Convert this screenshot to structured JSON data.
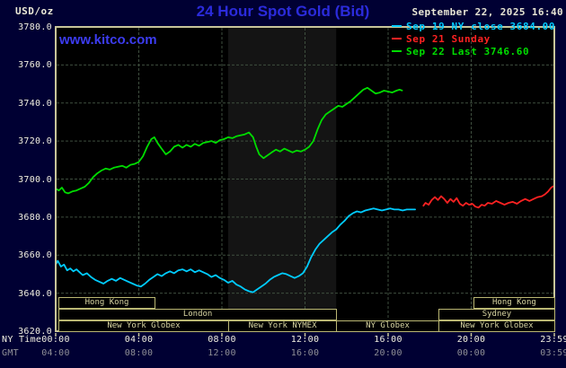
{
  "header": {
    "units_label": "USD/oz",
    "title": "24 Hour Spot Gold (Bid)",
    "datetime": "September 22, 2025 16:40",
    "watermark": "www.kitco.com"
  },
  "axes": {
    "ny_label": "NY Time",
    "gmt_label": "GMT"
  },
  "sessions": {
    "rows": [
      [
        {
          "label": "Hong Kong",
          "h1": 0.13,
          "h2": 4.76
        },
        {
          "label": "Hong Kong",
          "h1": 20.1,
          "h2": 24
        }
      ],
      [
        {
          "label": "London",
          "h1": 0.13,
          "h2": 13.5
        },
        {
          "label": "Sydney",
          "h1": 18.42,
          "h2": 24
        }
      ],
      [
        {
          "label": "New York Globex",
          "h1": 0.13,
          "h2": 8.3
        },
        {
          "label": "New York NYMEX",
          "h1": 8.3,
          "h2": 13.5
        },
        {
          "label": "NY Globex",
          "h1": 13.5,
          "h2": 18.42
        },
        {
          "label": "New York Globex",
          "h1": 18.42,
          "h2": 24
        }
      ]
    ]
  },
  "chart_data": {
    "type": "line",
    "title": "24 Hour Spot Gold (Bid)",
    "xlabel": "NY Time",
    "ylabel": "USD/oz",
    "ylim": [
      3620,
      3780
    ],
    "y_tick_step": 20,
    "y_tick_labels": [
      "3780.0",
      "3760.0",
      "3740.0",
      "3720.0",
      "3700.0",
      "3680.0",
      "3660.0",
      "3640.0",
      "3620.0"
    ],
    "xlim_hours": [
      0,
      24
    ],
    "x_tick_hours": [
      0,
      4,
      8,
      12,
      16,
      20,
      24
    ],
    "x_tick_labels_ny": [
      "00:00",
      "04:00",
      "08:00",
      "12:00",
      "16:00",
      "20:00",
      "23:59"
    ],
    "x_tick_labels_gmt": [
      "04:00",
      "08:00",
      "12:00",
      "16:00",
      "20:00",
      "00:00",
      "03:59"
    ],
    "grid": true,
    "legend_position": "top-right",
    "nymex_band_hours": [
      8.3,
      13.5
    ],
    "series": [
      {
        "name": "sep19-ny-close",
        "legend_label": "Sep 19 NY close 3684.00",
        "color": "#00ccff",
        "close": 3684.0,
        "points": [
          [
            0.0,
            3655
          ],
          [
            0.1,
            3657
          ],
          [
            0.25,
            3654
          ],
          [
            0.4,
            3655
          ],
          [
            0.55,
            3652
          ],
          [
            0.7,
            3653
          ],
          [
            0.85,
            3651.5
          ],
          [
            1.0,
            3652.5
          ],
          [
            1.15,
            3651
          ],
          [
            1.3,
            3649.5
          ],
          [
            1.5,
            3650.5
          ],
          [
            1.7,
            3648.5
          ],
          [
            1.9,
            3647
          ],
          [
            2.1,
            3646
          ],
          [
            2.3,
            3645
          ],
          [
            2.5,
            3646.5
          ],
          [
            2.7,
            3647.5
          ],
          [
            2.9,
            3646.5
          ],
          [
            3.1,
            3648
          ],
          [
            3.3,
            3647
          ],
          [
            3.5,
            3646
          ],
          [
            3.7,
            3645
          ],
          [
            3.9,
            3644
          ],
          [
            4.1,
            3643.5
          ],
          [
            4.3,
            3645
          ],
          [
            4.5,
            3647
          ],
          [
            4.7,
            3648.5
          ],
          [
            4.9,
            3650
          ],
          [
            5.1,
            3649
          ],
          [
            5.3,
            3650.5
          ],
          [
            5.5,
            3651.5
          ],
          [
            5.7,
            3650.5
          ],
          [
            5.9,
            3652
          ],
          [
            6.1,
            3652.5
          ],
          [
            6.3,
            3651.5
          ],
          [
            6.5,
            3652.5
          ],
          [
            6.7,
            3651
          ],
          [
            6.9,
            3652
          ],
          [
            7.1,
            3651
          ],
          [
            7.3,
            3650
          ],
          [
            7.5,
            3648.5
          ],
          [
            7.7,
            3649.5
          ],
          [
            7.9,
            3648
          ],
          [
            8.1,
            3647
          ],
          [
            8.3,
            3645.5
          ],
          [
            8.5,
            3646.5
          ],
          [
            8.7,
            3644.5
          ],
          [
            8.9,
            3643.5
          ],
          [
            9.1,
            3642
          ],
          [
            9.3,
            3641
          ],
          [
            9.5,
            3640.5
          ],
          [
            9.7,
            3642
          ],
          [
            9.9,
            3643.5
          ],
          [
            10.1,
            3645
          ],
          [
            10.3,
            3647
          ],
          [
            10.5,
            3648.5
          ],
          [
            10.7,
            3649.5
          ],
          [
            10.9,
            3650.5
          ],
          [
            11.1,
            3650
          ],
          [
            11.3,
            3649
          ],
          [
            11.5,
            3648
          ],
          [
            11.7,
            3649
          ],
          [
            11.9,
            3650.5
          ],
          [
            12.1,
            3654
          ],
          [
            12.3,
            3659
          ],
          [
            12.5,
            3663
          ],
          [
            12.7,
            3666
          ],
          [
            12.9,
            3668
          ],
          [
            13.1,
            3670
          ],
          [
            13.3,
            3672
          ],
          [
            13.5,
            3673.5
          ],
          [
            13.7,
            3676
          ],
          [
            13.9,
            3678
          ],
          [
            14.1,
            3680.5
          ],
          [
            14.3,
            3682
          ],
          [
            14.5,
            3683
          ],
          [
            14.7,
            3682.5
          ],
          [
            14.9,
            3683.5
          ],
          [
            15.1,
            3684
          ],
          [
            15.3,
            3684.5
          ],
          [
            15.5,
            3684
          ],
          [
            15.7,
            3683.5
          ],
          [
            15.9,
            3684
          ],
          [
            16.1,
            3684.5
          ],
          [
            16.3,
            3684
          ],
          [
            16.5,
            3684
          ],
          [
            16.7,
            3683.5
          ],
          [
            16.9,
            3684
          ],
          [
            17.1,
            3684
          ],
          [
            17.3,
            3684
          ]
        ]
      },
      {
        "name": "sep21-sunday",
        "legend_label": "Sep 21 Sunday",
        "color": "#ff2222",
        "points": [
          [
            17.7,
            3686
          ],
          [
            17.8,
            3687.5
          ],
          [
            17.95,
            3686.5
          ],
          [
            18.1,
            3689
          ],
          [
            18.25,
            3690.5
          ],
          [
            18.4,
            3689
          ],
          [
            18.55,
            3691
          ],
          [
            18.7,
            3689.5
          ],
          [
            18.85,
            3687.5
          ],
          [
            19.0,
            3689.5
          ],
          [
            19.15,
            3688
          ],
          [
            19.3,
            3690
          ],
          [
            19.45,
            3687
          ],
          [
            19.6,
            3686
          ],
          [
            19.75,
            3687.5
          ],
          [
            19.9,
            3686.5
          ],
          [
            20.05,
            3687
          ],
          [
            20.2,
            3685.5
          ],
          [
            20.35,
            3685
          ],
          [
            20.5,
            3686.5
          ],
          [
            20.65,
            3686
          ],
          [
            20.8,
            3687.5
          ],
          [
            21.0,
            3687
          ],
          [
            21.2,
            3688.5
          ],
          [
            21.4,
            3687.5
          ],
          [
            21.6,
            3686.5
          ],
          [
            21.8,
            3687.5
          ],
          [
            22.0,
            3688
          ],
          [
            22.2,
            3687
          ],
          [
            22.4,
            3688.5
          ],
          [
            22.6,
            3689.5
          ],
          [
            22.8,
            3688.5
          ],
          [
            23.0,
            3689.5
          ],
          [
            23.2,
            3690.5
          ],
          [
            23.4,
            3691
          ],
          [
            23.55,
            3692
          ],
          [
            23.7,
            3693.5
          ],
          [
            23.85,
            3695.5
          ],
          [
            24.0,
            3696.5
          ]
        ]
      },
      {
        "name": "sep22-last",
        "legend_label": "Sep 22 Last 3746.60",
        "color": "#00dd00",
        "last": 3746.6,
        "points": [
          [
            0.0,
            3695
          ],
          [
            0.15,
            3694
          ],
          [
            0.3,
            3695.5
          ],
          [
            0.45,
            3693
          ],
          [
            0.6,
            3692.5
          ],
          [
            0.8,
            3693.5
          ],
          [
            1.0,
            3694
          ],
          [
            1.2,
            3695
          ],
          [
            1.4,
            3696
          ],
          [
            1.6,
            3698
          ],
          [
            1.8,
            3701
          ],
          [
            2.0,
            3703
          ],
          [
            2.2,
            3704.5
          ],
          [
            2.4,
            3705.5
          ],
          [
            2.6,
            3705
          ],
          [
            2.8,
            3706
          ],
          [
            3.0,
            3706.5
          ],
          [
            3.2,
            3707
          ],
          [
            3.4,
            3706
          ],
          [
            3.6,
            3707.5
          ],
          [
            3.8,
            3708
          ],
          [
            4.0,
            3709
          ],
          [
            4.2,
            3712
          ],
          [
            4.4,
            3717
          ],
          [
            4.6,
            3721
          ],
          [
            4.75,
            3722
          ],
          [
            4.9,
            3719
          ],
          [
            5.1,
            3716
          ],
          [
            5.3,
            3713
          ],
          [
            5.5,
            3714.5
          ],
          [
            5.7,
            3717
          ],
          [
            5.9,
            3718
          ],
          [
            6.1,
            3716.5
          ],
          [
            6.3,
            3718
          ],
          [
            6.5,
            3717
          ],
          [
            6.7,
            3718.5
          ],
          [
            6.9,
            3717.5
          ],
          [
            7.1,
            3719
          ],
          [
            7.3,
            3719.5
          ],
          [
            7.5,
            3720
          ],
          [
            7.7,
            3719
          ],
          [
            7.9,
            3720.5
          ],
          [
            8.1,
            3721
          ],
          [
            8.3,
            3722
          ],
          [
            8.5,
            3721.5
          ],
          [
            8.7,
            3722.5
          ],
          [
            8.9,
            3723
          ],
          [
            9.1,
            3723.5
          ],
          [
            9.3,
            3724.5
          ],
          [
            9.5,
            3722
          ],
          [
            9.65,
            3717
          ],
          [
            9.8,
            3713
          ],
          [
            10.0,
            3711
          ],
          [
            10.2,
            3712.5
          ],
          [
            10.4,
            3714
          ],
          [
            10.6,
            3715.5
          ],
          [
            10.8,
            3714.5
          ],
          [
            11.0,
            3716
          ],
          [
            11.2,
            3715
          ],
          [
            11.4,
            3714
          ],
          [
            11.6,
            3715
          ],
          [
            11.8,
            3714.5
          ],
          [
            12.0,
            3715.5
          ],
          [
            12.2,
            3717
          ],
          [
            12.4,
            3720
          ],
          [
            12.6,
            3726
          ],
          [
            12.8,
            3731
          ],
          [
            13.0,
            3734
          ],
          [
            13.2,
            3735.5
          ],
          [
            13.4,
            3737
          ],
          [
            13.6,
            3738.5
          ],
          [
            13.8,
            3738
          ],
          [
            14.0,
            3739.5
          ],
          [
            14.2,
            3741
          ],
          [
            14.4,
            3743
          ],
          [
            14.6,
            3745
          ],
          [
            14.8,
            3747
          ],
          [
            15.0,
            3748
          ],
          [
            15.2,
            3746.5
          ],
          [
            15.4,
            3745
          ],
          [
            15.6,
            3745.5
          ],
          [
            15.8,
            3746.5
          ],
          [
            16.0,
            3746
          ],
          [
            16.2,
            3745.5
          ],
          [
            16.4,
            3746.5
          ],
          [
            16.55,
            3747
          ],
          [
            16.67,
            3746.6
          ]
        ]
      }
    ]
  }
}
